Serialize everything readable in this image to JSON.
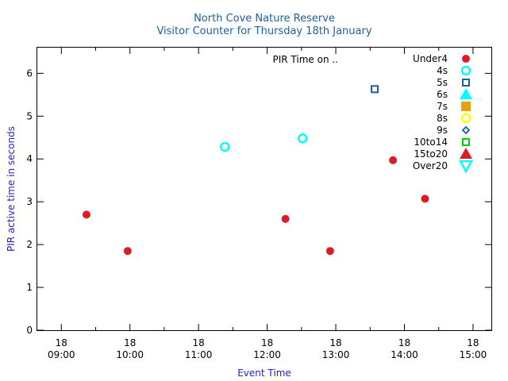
{
  "chart_data": {
    "type": "scatter",
    "title": "North Cove Nature Reserve",
    "subtitle": "Visitor Counter for Thursday 18th January",
    "xlabel": "Event Time",
    "ylabel": "PIR active time in seconds",
    "xlim": [
      "08:39",
      "15:16"
    ],
    "ylim": [
      0,
      6.6
    ],
    "x_ticks": [
      {
        "t": "09:00",
        "day": "18",
        "time": "09:00"
      },
      {
        "t": "10:00",
        "day": "18",
        "time": "10:00"
      },
      {
        "t": "11:00",
        "day": "18",
        "time": "11:00"
      },
      {
        "t": "12:00",
        "day": "18",
        "time": "12:00"
      },
      {
        "t": "13:00",
        "day": "18",
        "time": "13:00"
      },
      {
        "t": "14:00",
        "day": "18",
        "time": "14:00"
      },
      {
        "t": "15:00",
        "day": "18",
        "time": "15:00"
      }
    ],
    "y_ticks": [
      "0",
      "1",
      "2",
      "3",
      "4",
      "5",
      "6"
    ],
    "grid": false,
    "legend_position": "top-right",
    "legend_title": "PIR Time on ..",
    "series": [
      {
        "name": "Under4",
        "marker": "circle-filled",
        "color": "#dd1c24",
        "points": [
          {
            "x": "09:22",
            "y": 2.7
          },
          {
            "x": "09:58",
            "y": 1.85
          },
          {
            "x": "12:16",
            "y": 2.6
          },
          {
            "x": "12:55",
            "y": 1.85
          },
          {
            "x": "13:50",
            "y": 3.97
          },
          {
            "x": "14:18",
            "y": 3.07
          }
        ]
      },
      {
        "name": "4s",
        "marker": "circle-open",
        "color": "#00ffff",
        "points": [
          {
            "x": "11:23",
            "y": 4.28
          },
          {
            "x": "12:31",
            "y": 4.48
          }
        ]
      },
      {
        "name": "5s",
        "marker": "square-open",
        "color": "#1560a8",
        "points": [
          {
            "x": "13:34",
            "y": 5.63
          }
        ]
      },
      {
        "name": "6s",
        "marker": "triangle-up-filled",
        "color": "#00ffff",
        "points": []
      },
      {
        "name": "7s",
        "marker": "square-filled",
        "color": "#e8a010",
        "points": []
      },
      {
        "name": "8s",
        "marker": "circle-open",
        "color": "#ffff00",
        "points": []
      },
      {
        "name": "9s",
        "marker": "diamond-open",
        "color": "#1560a8",
        "points": []
      },
      {
        "name": "10to14",
        "marker": "square-open",
        "color": "#00cc00",
        "points": []
      },
      {
        "name": "15to20",
        "marker": "triangle-up-filled",
        "color": "#dd1c24",
        "points": []
      },
      {
        "name": "Over20",
        "marker": "triangle-down-open",
        "color": "#00ffff",
        "points": []
      }
    ]
  }
}
